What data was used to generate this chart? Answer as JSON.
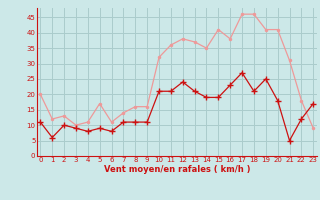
{
  "x": [
    0,
    1,
    2,
    3,
    4,
    5,
    6,
    7,
    8,
    9,
    10,
    11,
    12,
    13,
    14,
    15,
    16,
    17,
    18,
    19,
    20,
    21,
    22,
    23
  ],
  "vent_moyen": [
    11,
    6,
    10,
    9,
    8,
    9,
    8,
    11,
    11,
    11,
    21,
    21,
    24,
    21,
    19,
    19,
    23,
    27,
    21,
    25,
    18,
    5,
    12,
    17
  ],
  "rafales": [
    20,
    12,
    13,
    10,
    11,
    17,
    11,
    14,
    16,
    16,
    32,
    36,
    38,
    37,
    35,
    41,
    38,
    46,
    46,
    41,
    41,
    31,
    18,
    9
  ],
  "bg_color": "#cce8e8",
  "grid_color": "#aacccc",
  "line_moyen_color": "#cc1111",
  "line_rafales_color": "#ee9999",
  "marker_size_moyen": 2.5,
  "marker_size_rafales": 2.5,
  "xlabel": "Vent moyen/en rafales ( km/h )",
  "xlabel_color": "#cc1111",
  "yticks": [
    0,
    5,
    10,
    15,
    20,
    25,
    30,
    35,
    40,
    45
  ],
  "ylim": [
    0,
    48
  ],
  "xlim": [
    -0.3,
    23.3
  ],
  "tick_fontsize": 5.0,
  "xlabel_fontsize": 6.0
}
